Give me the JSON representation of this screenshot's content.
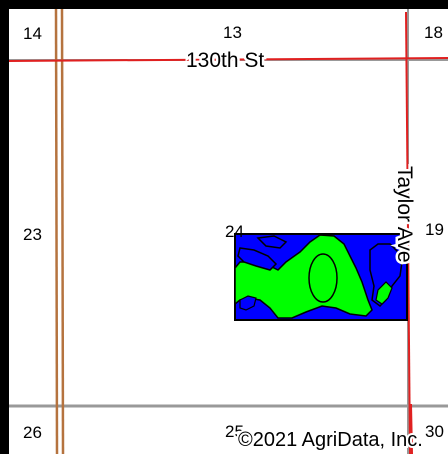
{
  "map": {
    "roads": {
      "north_road": "130th St",
      "east_road": "Taylor Ave"
    },
    "section_numbers": {
      "nw_corner": "14",
      "n_center": "13",
      "ne_corner": "18",
      "w_middle": "23",
      "field_section": "24",
      "e_middle": "19",
      "sw_corner": "26",
      "s_center": "25",
      "se_corner": "30"
    },
    "copyright": "©2021 AgriData, Inc.",
    "colors": {
      "road_red": "#e02020",
      "road_brown": "#b5733f",
      "section_line_gray": "#999999",
      "field_blue": "#0000ff",
      "soil_green": "#00ff00",
      "outline": "#000000"
    }
  }
}
